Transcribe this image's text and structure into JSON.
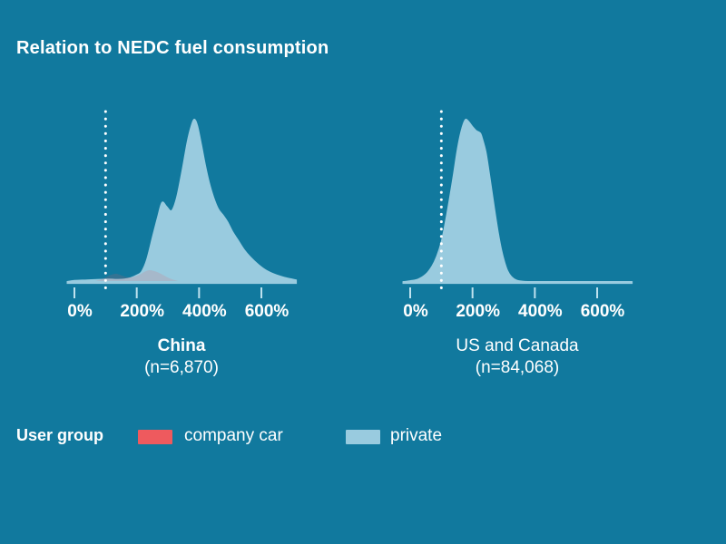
{
  "title": "Relation to NEDC fuel consumption",
  "colors": {
    "background": "#11799E",
    "area_fill": "#99CBDF",
    "axis_line": "#99CBDF",
    "tick_mark": "#BFE2EF",
    "ref_line": "#FFFFFF",
    "text": "#FFFFFF",
    "company_car": "#EE5A5E",
    "company_car_overlay": "rgba(238,90,94,0.16)"
  },
  "legend": {
    "title": "User group",
    "items": [
      {
        "label": "company car",
        "color": "#EE5A5E"
      },
      {
        "label": "private",
        "color": "#99CBDF"
      }
    ]
  },
  "chart_data": {
    "type": "area",
    "title": "Relation to NEDC fuel consumption",
    "x_unit": "percent of NEDC fuel consumption",
    "x_domain": [
      -23,
      712
    ],
    "x_ticks": [
      {
        "value": 0,
        "label": "0%"
      },
      {
        "value": 200,
        "label": "200%"
      },
      {
        "value": 400,
        "label": "400%"
      },
      {
        "value": 600,
        "label": "600%"
      }
    ],
    "ref_line_x": 100,
    "y_normalized": true,
    "grid": false,
    "panels": [
      {
        "label": "China",
        "n_label": "(n=6,870)",
        "highlighted": true,
        "series": [
          {
            "name": "private",
            "points": [
              [
                -23,
                0.005
              ],
              [
                0,
                0.012
              ],
              [
                40,
                0.015
              ],
              [
                80,
                0.018
              ],
              [
                110,
                0.02
              ],
              [
                140,
                0.018
              ],
              [
                160,
                0.02
              ],
              [
                180,
                0.028
              ],
              [
                200,
                0.045
              ],
              [
                215,
                0.065
              ],
              [
                232,
                0.14
              ],
              [
                252,
                0.29
              ],
              [
                267,
                0.4
              ],
              [
                281,
                0.49
              ],
              [
                296,
                0.465
              ],
              [
                312,
                0.44
              ],
              [
                328,
                0.52
              ],
              [
                345,
                0.68
              ],
              [
                362,
                0.86
              ],
              [
                375,
                0.96
              ],
              [
                385,
                1.0
              ],
              [
                395,
                0.96
              ],
              [
                408,
                0.84
              ],
              [
                420,
                0.72
              ],
              [
                433,
                0.61
              ],
              [
                447,
                0.52
              ],
              [
                462,
                0.45
              ],
              [
                478,
                0.41
              ],
              [
                492,
                0.37
              ],
              [
                508,
                0.31
              ],
              [
                525,
                0.26
              ],
              [
                545,
                0.2
              ],
              [
                565,
                0.155
              ],
              [
                590,
                0.11
              ],
              [
                615,
                0.075
              ],
              [
                645,
                0.048
              ],
              [
                675,
                0.03
              ],
              [
                700,
                0.02
              ],
              [
                712,
                0.015
              ]
            ]
          },
          {
            "name": "company car",
            "points": [
              [
                -23,
                0
              ],
              [
                50,
                0.003
              ],
              [
                70,
                0.01
              ],
              [
                85,
                0.018
              ],
              [
                100,
                0.03
              ],
              [
                115,
                0.045
              ],
              [
                130,
                0.053
              ],
              [
                142,
                0.05
              ],
              [
                155,
                0.04
              ],
              [
                170,
                0.032
              ],
              [
                185,
                0.032
              ],
              [
                200,
                0.04
              ],
              [
                212,
                0.05
              ],
              [
                225,
                0.065
              ],
              [
                240,
                0.075
              ],
              [
                255,
                0.07
              ],
              [
                270,
                0.06
              ],
              [
                285,
                0.045
              ],
              [
                300,
                0.03
              ],
              [
                320,
                0.015
              ],
              [
                340,
                0.005
              ],
              [
                360,
                0
              ]
            ]
          }
        ]
      },
      {
        "label": "US and Canada",
        "n_label": "(n=84,068)",
        "highlighted": false,
        "series": [
          {
            "name": "private",
            "points": [
              [
                -23,
                0.004
              ],
              [
                0,
                0.01
              ],
              [
                25,
                0.02
              ],
              [
                50,
                0.05
              ],
              [
                70,
                0.1
              ],
              [
                85,
                0.16
              ],
              [
                100,
                0.25
              ],
              [
                112,
                0.36
              ],
              [
                125,
                0.5
              ],
              [
                138,
                0.65
              ],
              [
                150,
                0.8
              ],
              [
                160,
                0.9
              ],
              [
                170,
                0.97
              ],
              [
                178,
                1.0
              ],
              [
                188,
                0.985
              ],
              [
                200,
                0.955
              ],
              [
                212,
                0.93
              ],
              [
                225,
                0.915
              ],
              [
                232,
                0.88
              ],
              [
                243,
                0.8
              ],
              [
                253,
                0.68
              ],
              [
                263,
                0.55
              ],
              [
                273,
                0.42
              ],
              [
                283,
                0.3
              ],
              [
                293,
                0.2
              ],
              [
                303,
                0.125
              ],
              [
                313,
                0.07
              ],
              [
                325,
                0.035
              ],
              [
                340,
                0.015
              ],
              [
                360,
                0.007
              ],
              [
                400,
                0.004
              ],
              [
                500,
                0.004
              ],
              [
                600,
                0.004
              ],
              [
                712,
                0.004
              ]
            ]
          }
        ]
      }
    ]
  }
}
